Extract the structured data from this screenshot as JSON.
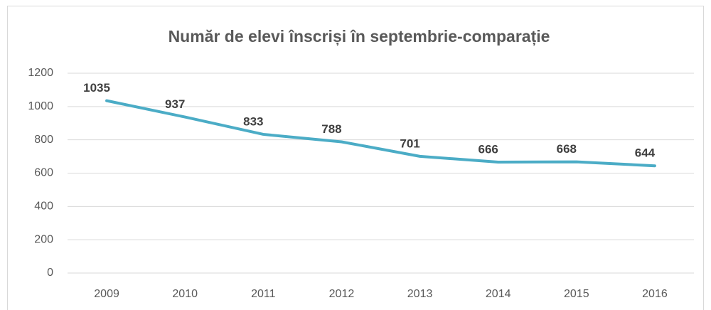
{
  "chart_data": {
    "type": "line",
    "title": "Număr de elevi înscriși în septembrie-comparație",
    "categories": [
      "2009",
      "2010",
      "2011",
      "2012",
      "2013",
      "2014",
      "2015",
      "2016"
    ],
    "series": [
      {
        "name": "Număr de elevi",
        "color": "#4bacc6",
        "values": [
          1035,
          937,
          833,
          788,
          701,
          666,
          668,
          644
        ]
      }
    ],
    "ylim": [
      0,
      1200
    ],
    "yticks": [
      0,
      200,
      400,
      600,
      800,
      1000,
      1200
    ],
    "grid": true
  }
}
